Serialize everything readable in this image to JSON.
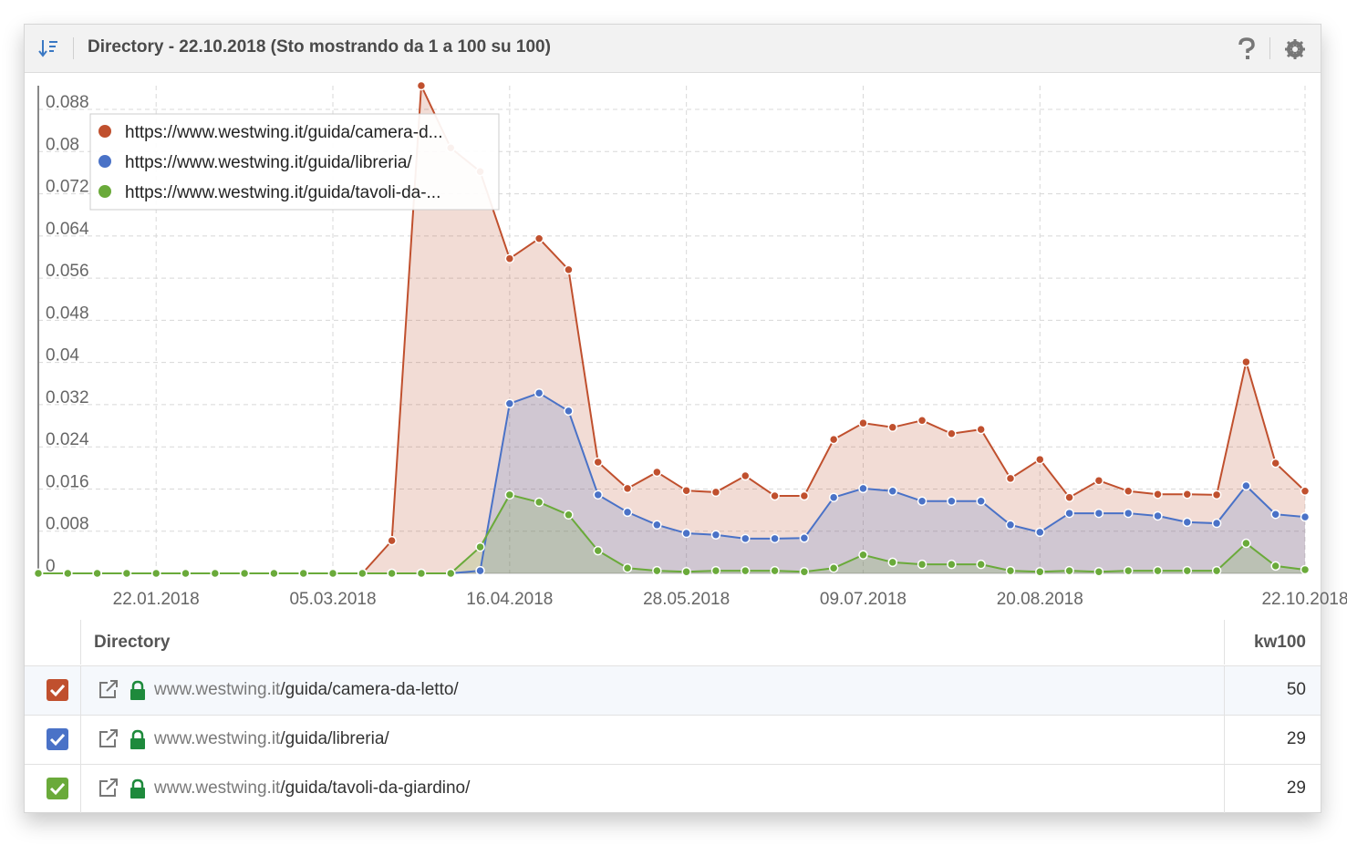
{
  "header": {
    "title": "Directory - 22.10.2018 (Sto mostrando da 1 a 100 su 100)"
  },
  "chart_data": {
    "type": "area",
    "categories": [
      null,
      null,
      null,
      null,
      "22.01.2018",
      null,
      null,
      null,
      null,
      null,
      "05.03.2018",
      null,
      null,
      null,
      null,
      null,
      "16.04.2018",
      null,
      null,
      null,
      null,
      null,
      "28.05.2018",
      null,
      null,
      null,
      null,
      null,
      "09.07.2018",
      null,
      null,
      null,
      null,
      null,
      "20.08.2018",
      null,
      null,
      null,
      null,
      null,
      null,
      null,
      null,
      "22.10.2018"
    ],
    "series": [
      {
        "name": "https://www.westwing.it/guida/camera-d...",
        "color": "#c0502e",
        "values": [
          0,
          0,
          0,
          0,
          0,
          0,
          0,
          0,
          0,
          0,
          0,
          0,
          0.0062,
          0.0925,
          0.0807,
          0.0762,
          0.0597,
          0.0635,
          0.0576,
          0.0211,
          0.0161,
          0.0192,
          0.0157,
          0.0154,
          0.0185,
          0.0147,
          0.0147,
          0.0254,
          0.0285,
          0.0277,
          0.029,
          0.0265,
          0.0273,
          0.018,
          0.0216,
          0.0144,
          0.0176,
          0.0156,
          0.015,
          0.015,
          0.0149,
          0.0401,
          0.0209,
          0.0156
        ]
      },
      {
        "name": "https://www.westwing.it/guida/libreria/",
        "color": "#4a72c7",
        "values": [
          0,
          0,
          0,
          0,
          0,
          0,
          0,
          0,
          0,
          0,
          0,
          0,
          0,
          0,
          0,
          0.0005,
          0.0322,
          0.0342,
          0.0308,
          0.0149,
          0.0116,
          0.0092,
          0.0076,
          0.0073,
          0.0066,
          0.0066,
          0.0067,
          0.0144,
          0.0161,
          0.0156,
          0.0137,
          0.0137,
          0.0137,
          0.0092,
          0.0078,
          0.0114,
          0.0114,
          0.0114,
          0.0109,
          0.0097,
          0.0095,
          0.0166,
          0.0112,
          0.0107
        ]
      },
      {
        "name": "https://www.westwing.it/guida/tavoli-da-...",
        "color": "#6aaa3a",
        "values": [
          0,
          0,
          0,
          0,
          0,
          0,
          0,
          0,
          0,
          0,
          0,
          0,
          0,
          0,
          0,
          0.005,
          0.0149,
          0.0135,
          0.0111,
          0.0043,
          0.001,
          0.0005,
          0.0003,
          0.0005,
          0.0005,
          0.0005,
          0.0003,
          0.001,
          0.0035,
          0.0021,
          0.0017,
          0.0017,
          0.0017,
          0.0005,
          0.0003,
          0.0005,
          0.0003,
          0.0005,
          0.0005,
          0.0005,
          0.0005,
          0.0057,
          0.0014,
          0.0007
        ]
      }
    ],
    "ylim": [
      0,
      0.0925
    ],
    "yticks": [
      0,
      0.008,
      0.016,
      0.024,
      0.032,
      0.04,
      0.048,
      0.056,
      0.064,
      0.072,
      0.08,
      0.088
    ],
    "grid": true,
    "legend": "top-left"
  },
  "table": {
    "columns": [
      "Directory",
      "kw100"
    ],
    "rows": [
      {
        "domain": "www.westwing.it",
        "path": "/guida/camera-da-letto/",
        "kw100": 50
      },
      {
        "domain": "www.westwing.it",
        "path": "/guida/libreria/",
        "kw100": 29
      },
      {
        "domain": "www.westwing.it",
        "path": "/guida/tavoli-da-giardino/",
        "kw100": 29
      }
    ]
  }
}
